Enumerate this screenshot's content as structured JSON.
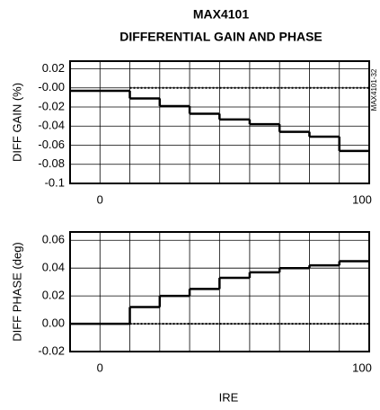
{
  "chart_data": [
    {
      "type": "step",
      "title": "MAX4101",
      "subtitle": "DIFFERENTIAL GAIN AND PHASE",
      "annotation": "MAX4101-32",
      "ylabel": "DIFF GAIN (%)",
      "x": [
        -11.1,
        11.1,
        22.2,
        33.3,
        44.4,
        55.6,
        66.7,
        77.8,
        88.9
      ],
      "values": [
        -0.003,
        -0.011,
        -0.019,
        -0.027,
        -0.033,
        -0.038,
        -0.046,
        -0.051,
        -0.066
      ],
      "color": "#000000",
      "reference": {
        "y": 0,
        "x": [
          11.1,
          100
        ]
      },
      "xlim": [
        -11.1,
        100
      ],
      "xticks": [
        0,
        100
      ],
      "xgrid": [
        0,
        11.1,
        22.2,
        33.3,
        44.4,
        55.6,
        66.7,
        77.8,
        88.9
      ],
      "ylim": [
        -0.1,
        0.028
      ],
      "yticks": [
        0.02,
        {
          "value": 0,
          "label": "-0.00"
        },
        -0.02,
        -0.04,
        -0.06,
        -0.08,
        -0.1
      ],
      "grid": true
    },
    {
      "type": "step",
      "ylabel": "DIFF PHASE (deg)",
      "xlabel": "IRE",
      "x": [
        -11.1,
        11.1,
        22.2,
        33.3,
        44.4,
        55.6,
        66.7,
        77.8,
        88.9
      ],
      "values": [
        0,
        0.012,
        0.02,
        0.025,
        0.033,
        0.037,
        0.04,
        0.042,
        0.045
      ],
      "color": "#000000",
      "reference": {
        "y": 0,
        "x": [
          11.1,
          100
        ]
      },
      "xlim": [
        -11.1,
        100
      ],
      "xticks": [
        0,
        100
      ],
      "xgrid": [
        0,
        11.1,
        22.2,
        33.3,
        44.4,
        55.6,
        66.7,
        77.8,
        88.9
      ],
      "ylim": [
        -0.02,
        0.066
      ],
      "yticks": [
        {
          "value": 0.06,
          "label": "0.06"
        },
        {
          "value": 0.04,
          "label": "0.04"
        },
        {
          "value": 0.02,
          "label": "0.02"
        },
        {
          "value": 0,
          "label": "0.00"
        },
        {
          "value": -0.02,
          "label": "-0.02"
        }
      ],
      "grid": true
    }
  ]
}
